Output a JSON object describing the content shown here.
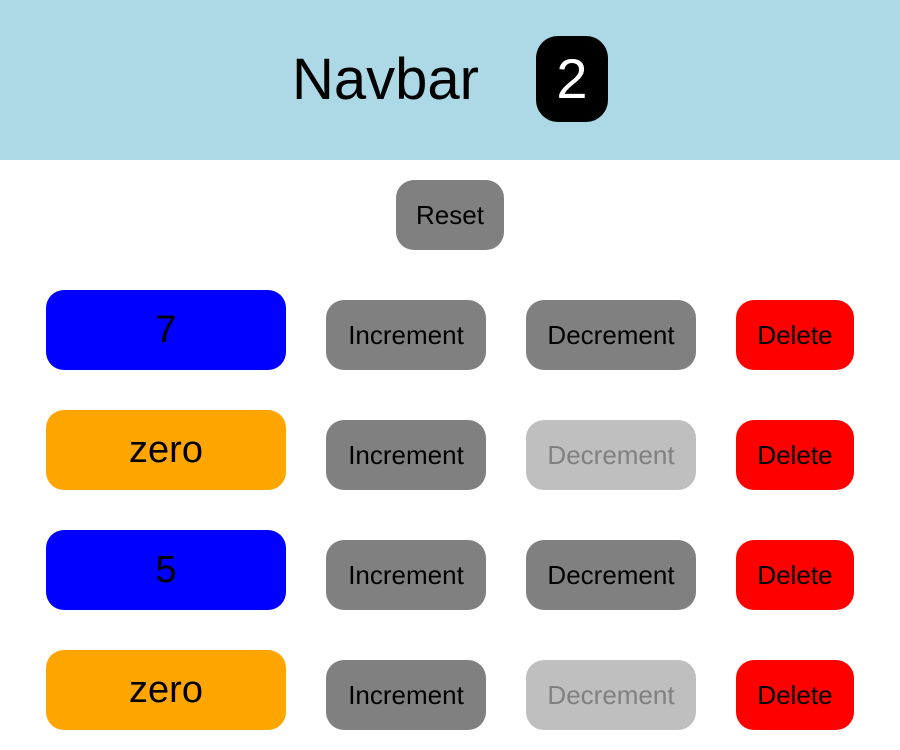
{
  "navbar": {
    "title": "Navbar",
    "count": "2"
  },
  "reset_label": "Reset",
  "colors": {
    "navbar_bg": "#add8e6",
    "nonzero_badge": "#0000ff",
    "zero_badge": "#ffa500",
    "button_gray": "#808080",
    "disabled_gray": "#bfbfbf",
    "delete_red": "#ff0000"
  },
  "counters": [
    {
      "display": "7",
      "is_zero": false,
      "increment_label": "Increment",
      "decrement_label": "Decrement",
      "delete_label": "Delete"
    },
    {
      "display": "zero",
      "is_zero": true,
      "increment_label": "Increment",
      "decrement_label": "Decrement",
      "delete_label": "Delete"
    },
    {
      "display": "5",
      "is_zero": false,
      "increment_label": "Increment",
      "decrement_label": "Decrement",
      "delete_label": "Delete"
    },
    {
      "display": "zero",
      "is_zero": true,
      "increment_label": "Increment",
      "decrement_label": "Decrement",
      "delete_label": "Delete"
    }
  ]
}
